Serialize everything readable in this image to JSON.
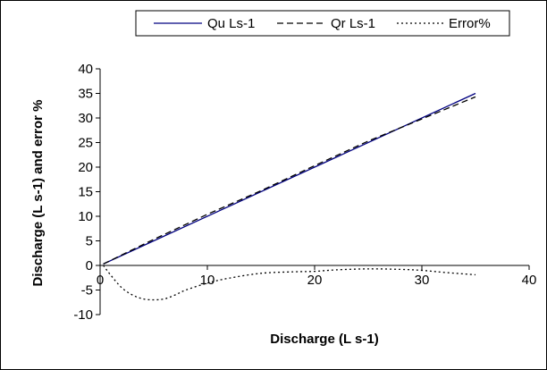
{
  "chart_data": {
    "type": "line",
    "xlabel": "Discharge (L s-1)",
    "ylabel": "Discharge (L s-1) and error %",
    "xlim": [
      0,
      40
    ],
    "ylim": [
      -10,
      40
    ],
    "x_ticks": [
      0,
      10,
      20,
      30,
      40
    ],
    "y_ticks": [
      -10,
      -5,
      0,
      5,
      10,
      15,
      20,
      25,
      30,
      35,
      40
    ],
    "grid": false,
    "legend_position": "top",
    "series": [
      {
        "name": "Qu Ls-1",
        "style": "solid",
        "color": "#000080",
        "x": [
          0.3,
          35
        ],
        "y": [
          0.3,
          35
        ]
      },
      {
        "name": "Qr Ls-1",
        "style": "dashed",
        "color": "#000000",
        "x": [
          0.3,
          5,
          10,
          15,
          20,
          25,
          30,
          35
        ],
        "y": [
          0.3,
          5.3,
          10.4,
          15.2,
          20.3,
          25.3,
          29.8,
          34.3
        ]
      },
      {
        "name": "Error%",
        "style": "dotted",
        "color": "#000000",
        "x": [
          0.3,
          1,
          2,
          3,
          4,
          5,
          6,
          7,
          8,
          10,
          12,
          15,
          18,
          20,
          22,
          25,
          28,
          30,
          32,
          35
        ],
        "y": [
          0,
          -2,
          -4.5,
          -6,
          -6.8,
          -7,
          -6.8,
          -6,
          -5,
          -3.6,
          -2.6,
          -1.6,
          -1.3,
          -1.2,
          -0.9,
          -0.7,
          -0.8,
          -1.0,
          -1.4,
          -1.9
        ]
      }
    ]
  }
}
